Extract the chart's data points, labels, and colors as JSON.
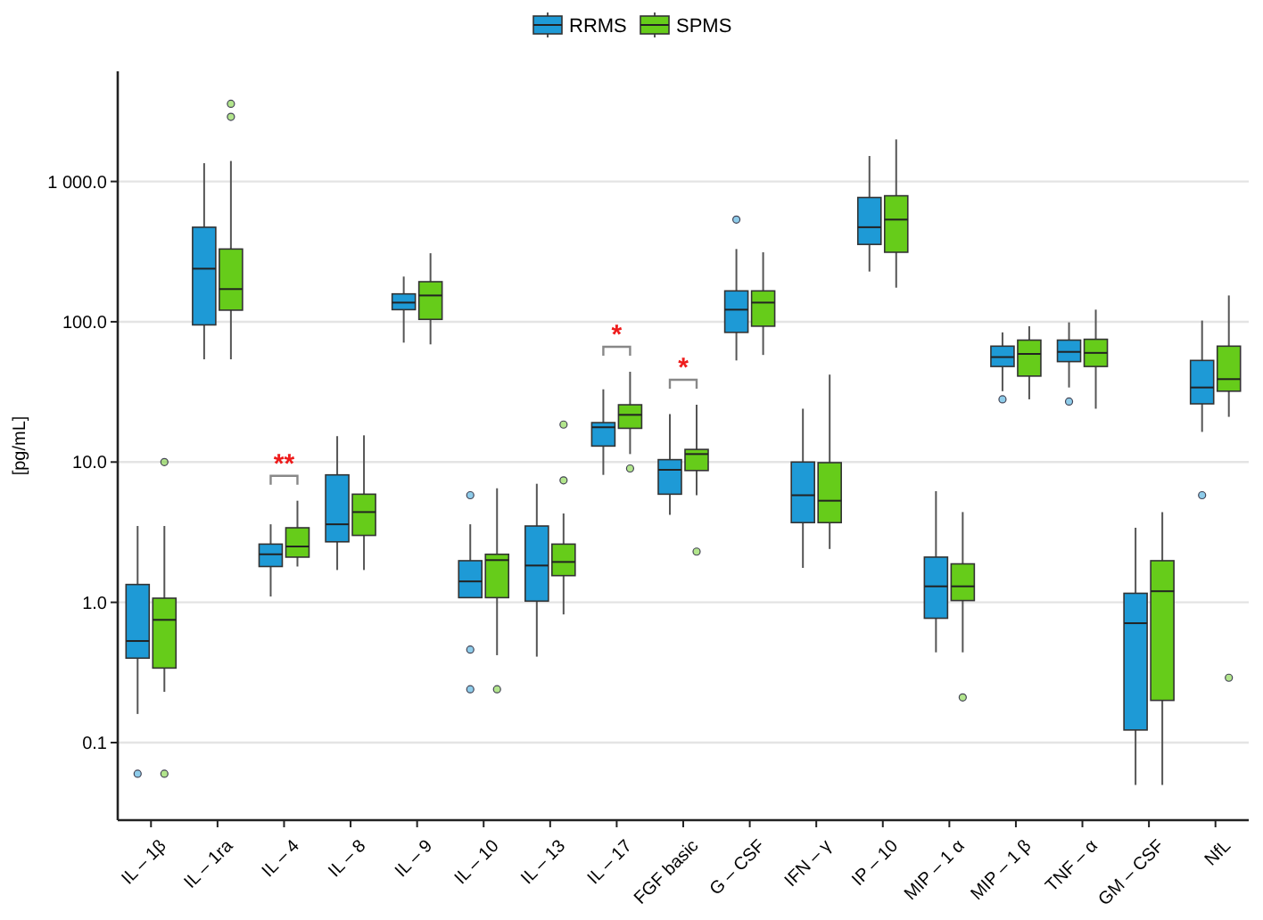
{
  "chart_data": {
    "type": "box",
    "ylabel": "[pg/mL]",
    "log": true,
    "grid": "y",
    "legend": "top",
    "categories": [
      "IL – 1β",
      "IL – 1ra",
      "IL – 4",
      "IL – 8",
      "IL – 9",
      "IL – 10",
      "IL – 13",
      "IL – 17",
      "FGF basic",
      "G – CSF",
      "IFN – γ",
      "IP – 10",
      "MIP – 1 α",
      "MIP – 1 β",
      "TNF – α",
      "GM – CSF",
      "NfL"
    ],
    "ylim": [
      0.028,
      6100
    ],
    "yticks": [
      {
        "value": 0.1,
        "label": "0.1"
      },
      {
        "value": 1,
        "label": "1.0"
      },
      {
        "value": 10,
        "label": "10.0"
      },
      {
        "value": 100,
        "label": "100.0"
      },
      {
        "value": 1000,
        "label": "1 000.0"
      }
    ],
    "series": [
      {
        "name": "RRMS",
        "color": "#1e9ad6",
        "boxes": [
          {
            "low": 0.16,
            "q1": 0.4,
            "median": 0.53,
            "q3": 1.34,
            "high": 3.5,
            "outliers": [
              0.06
            ]
          },
          {
            "low": 54,
            "q1": 95,
            "median": 239,
            "q3": 472,
            "high": 1350
          },
          {
            "low": 1.1,
            "q1": 1.8,
            "median": 2.2,
            "q3": 2.6,
            "high": 3.6
          },
          {
            "low": 1.7,
            "q1": 2.7,
            "median": 3.6,
            "q3": 8.1,
            "high": 15.3
          },
          {
            "low": 71,
            "q1": 122,
            "median": 137,
            "q3": 158,
            "high": 210
          },
          {
            "low": 1.08,
            "q1": 1.08,
            "median": 1.41,
            "q3": 1.98,
            "high": 3.6,
            "outliers": [
              5.8,
              0.46,
              0.24
            ]
          },
          {
            "low": 0.41,
            "q1": 1.02,
            "median": 1.83,
            "q3": 3.5,
            "high": 7
          },
          {
            "low": 8.1,
            "q1": 13,
            "median": 17.7,
            "q3": 19.1,
            "high": 33
          },
          {
            "low": 4.2,
            "q1": 5.9,
            "median": 8.8,
            "q3": 10.4,
            "high": 22
          },
          {
            "low": 53,
            "q1": 84,
            "median": 122,
            "q3": 166,
            "high": 330,
            "outliers": [
              535
            ]
          },
          {
            "low": 1.76,
            "q1": 3.7,
            "median": 5.8,
            "q3": 10,
            "high": 24
          },
          {
            "low": 228,
            "q1": 356,
            "median": 472,
            "q3": 769,
            "high": 1520
          },
          {
            "low": 0.44,
            "q1": 0.77,
            "median": 1.3,
            "q3": 2.1,
            "high": 6.2
          },
          {
            "low": 32,
            "q1": 48,
            "median": 56,
            "q3": 67,
            "high": 84,
            "outliers": [
              28
            ]
          },
          {
            "low": 34,
            "q1": 52,
            "median": 61,
            "q3": 74,
            "high": 99,
            "outliers": [
              27
            ]
          },
          {
            "low": 0.05,
            "q1": 0.123,
            "median": 0.71,
            "q3": 1.16,
            "high": 3.4
          },
          {
            "low": 16.4,
            "q1": 26,
            "median": 34,
            "q3": 53,
            "high": 102,
            "outliers": [
              5.8
            ]
          }
        ]
      },
      {
        "name": "SPMS",
        "color": "#66cc1a",
        "boxes": [
          {
            "low": 0.23,
            "q1": 0.34,
            "median": 0.75,
            "q3": 1.07,
            "high": 3.5,
            "outliers": [
              10,
              0.06
            ]
          },
          {
            "low": 54,
            "q1": 121,
            "median": 171,
            "q3": 330,
            "high": 1400,
            "outliers": [
              3580,
              2890
            ]
          },
          {
            "low": 1.8,
            "q1": 2.1,
            "median": 2.5,
            "q3": 3.4,
            "high": 5.3
          },
          {
            "low": 1.7,
            "q1": 3,
            "median": 4.4,
            "q3": 5.9,
            "high": 15.5
          },
          {
            "low": 69,
            "q1": 104,
            "median": 154,
            "q3": 193,
            "high": 308
          },
          {
            "low": 0.42,
            "q1": 1.08,
            "median": 2,
            "q3": 2.2,
            "high": 6.5,
            "outliers": [
              0.24
            ]
          },
          {
            "low": 0.82,
            "q1": 1.55,
            "median": 1.94,
            "q3": 2.6,
            "high": 4.3,
            "outliers": [
              7.4,
              18.5
            ]
          },
          {
            "low": 11.4,
            "q1": 17.4,
            "median": 21.7,
            "q3": 25.6,
            "high": 44,
            "outliers": [
              9
            ]
          },
          {
            "low": 5.8,
            "q1": 8.7,
            "median": 11.4,
            "q3": 12.3,
            "high": 25.6,
            "outliers": [
              2.3
            ]
          },
          {
            "low": 58,
            "q1": 93,
            "median": 137,
            "q3": 166,
            "high": 313
          },
          {
            "low": 2.4,
            "q1": 3.7,
            "median": 5.3,
            "q3": 9.9,
            "high": 42
          },
          {
            "low": 175,
            "q1": 313,
            "median": 535,
            "q3": 791,
            "high": 1995
          },
          {
            "low": 0.44,
            "q1": 1.03,
            "median": 1.3,
            "q3": 1.88,
            "high": 4.4,
            "outliers": [
              0.21
            ]
          },
          {
            "low": 28,
            "q1": 41,
            "median": 59,
            "q3": 74,
            "high": 93
          },
          {
            "low": 24,
            "q1": 48,
            "median": 60,
            "q3": 75,
            "high": 122
          },
          {
            "low": 0.05,
            "q1": 0.2,
            "median": 1.2,
            "q3": 1.98,
            "high": 4.4
          },
          {
            "low": 21,
            "q1": 32,
            "median": 39,
            "q3": 67,
            "high": 154,
            "outliers": [
              0.29
            ]
          }
        ]
      }
    ],
    "annotations": [
      "**",
      "*",
      "*"
    ]
  }
}
